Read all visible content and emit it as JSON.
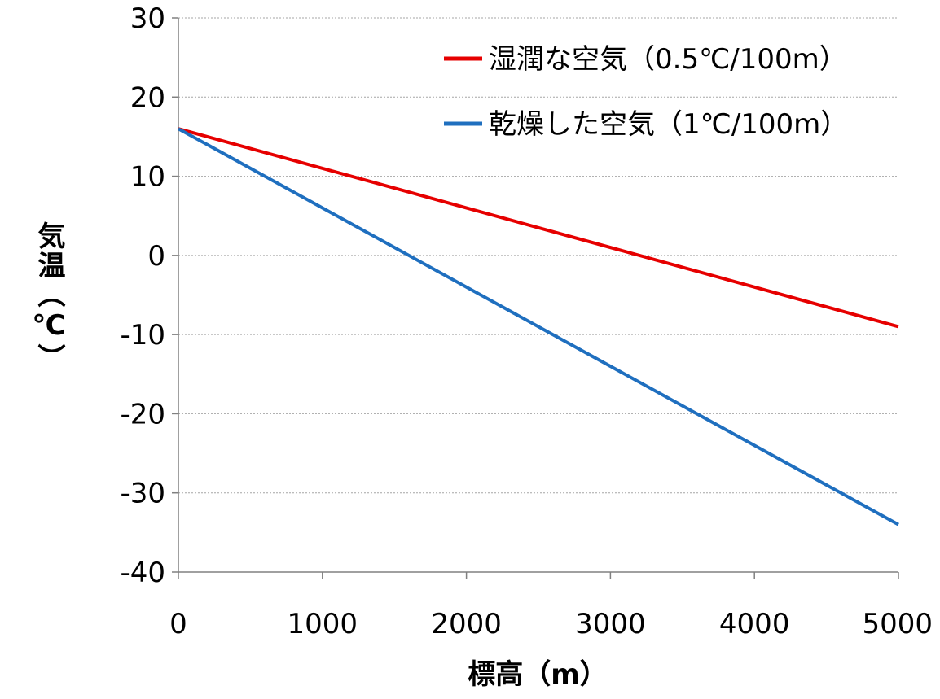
{
  "chart_data": {
    "type": "line",
    "xlabel": "標高（m）",
    "ylabel": "気温（℃）",
    "xlim": [
      0,
      5000
    ],
    "ylim": [
      -40,
      30
    ],
    "xticks": [
      0,
      1000,
      2000,
      3000,
      4000,
      5000
    ],
    "yticks": [
      30,
      20,
      10,
      0,
      -10,
      -20,
      -30,
      -40
    ],
    "grid": true,
    "legend_position": "top-right",
    "series": [
      {
        "name": "湿潤な空気（0.5℃/100m）",
        "color": "#e60000",
        "x": [
          0,
          5000
        ],
        "y": [
          16,
          -9
        ]
      },
      {
        "name": "乾燥した空気（1℃/100m）",
        "color": "#1f6fbf",
        "x": [
          0,
          5000
        ],
        "y": [
          16,
          -34
        ]
      }
    ]
  }
}
